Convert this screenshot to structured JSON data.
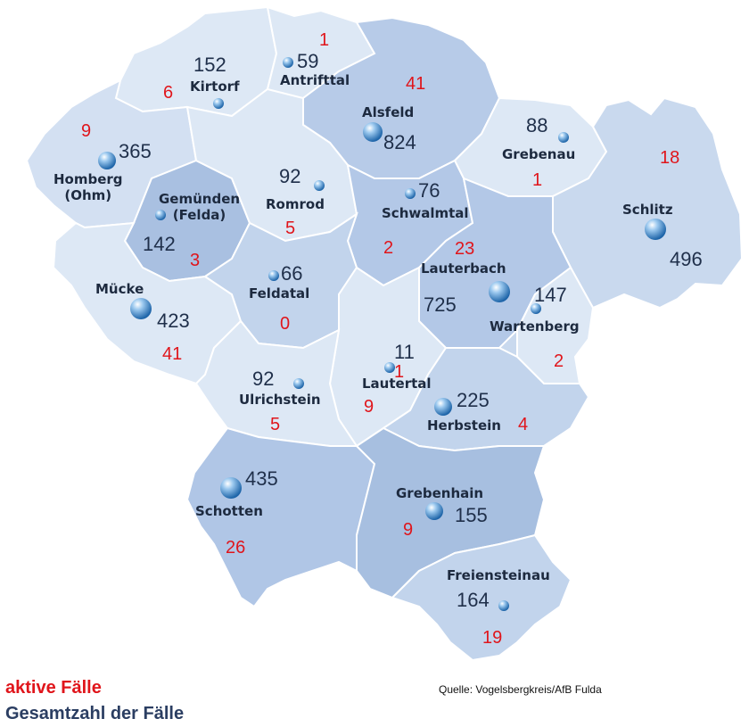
{
  "map": {
    "colors": {
      "light": "#dde8f5",
      "medium": "#c2d4ec",
      "dark": "#a7bfe0",
      "border": "#ffffff",
      "active": "#e0151b",
      "total": "#1f2f4a"
    },
    "municipalities": [
      {
        "id": "antrifttal",
        "name": "Antrifttal",
        "total": "59",
        "active": "1"
      },
      {
        "id": "kirtorf",
        "name": "Kirtorf",
        "total": "152",
        "active": "6"
      },
      {
        "id": "alsfeld",
        "name": "Alsfeld",
        "total": "824",
        "active": "41"
      },
      {
        "id": "grebenau",
        "name": "Grebenau",
        "total": "88",
        "active": "1"
      },
      {
        "id": "homberg",
        "name": "Homberg\n(Ohm)",
        "total": "365",
        "active": "9"
      },
      {
        "id": "gemuenden",
        "name": "Gemünden\n(Felda)",
        "total": "142",
        "active": "3"
      },
      {
        "id": "romrod",
        "name": "Romrod",
        "total": "92",
        "active": "5"
      },
      {
        "id": "schwalmtal",
        "name": "Schwalmtal",
        "total": "76",
        "active": "2"
      },
      {
        "id": "schlitz",
        "name": "Schlitz",
        "total": "496",
        "active": "18"
      },
      {
        "id": "lauterbach",
        "name": "Lauterbach",
        "total": "725",
        "active": "23"
      },
      {
        "id": "wartenberg",
        "name": "Wartenberg",
        "total": "147",
        "active": "2"
      },
      {
        "id": "muecke",
        "name": "Mücke",
        "total": "423",
        "active": "41"
      },
      {
        "id": "feldatal",
        "name": "Feldatal",
        "total": "66",
        "active": "0"
      },
      {
        "id": "lautertal",
        "name": "Lautertal",
        "total": "11",
        "active": "1"
      },
      {
        "id": "ulrichstein",
        "name": "Ulrichstein",
        "total": "92",
        "active": "5"
      },
      {
        "id": "herbstein",
        "name": "Herbstein",
        "total": "225",
        "active": "4"
      },
      {
        "id": "lautertal-active",
        "name": "",
        "total": "",
        "active": "9"
      },
      {
        "id": "schotten",
        "name": "Schotten",
        "total": "435",
        "active": "26"
      },
      {
        "id": "grebenhain",
        "name": "Grebenhain",
        "total": "155",
        "active": "9"
      },
      {
        "id": "freiensteinau",
        "name": "Freiensteinau",
        "total": "164",
        "active": "19"
      }
    ]
  },
  "legend": {
    "active_label": "aktive Fälle",
    "total_label": "Gesamtzahl der Fälle"
  },
  "source": "Quelle: Vogelsbergkreis/AfB Fulda"
}
